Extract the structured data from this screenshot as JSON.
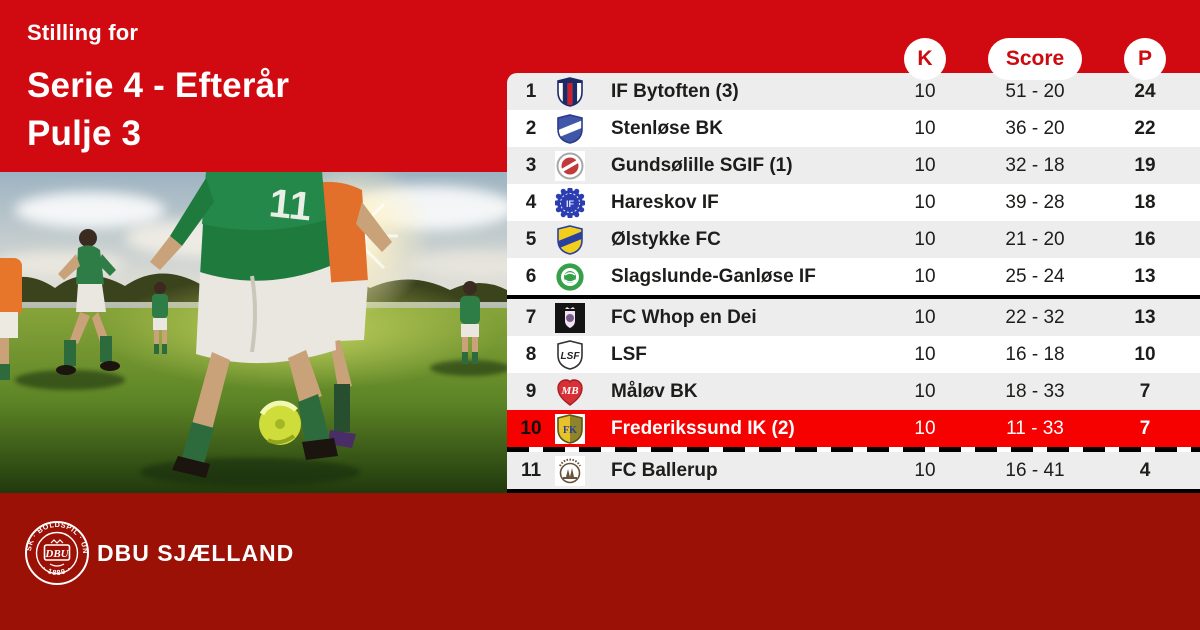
{
  "header": {
    "subtitle": "Stilling for",
    "title_line1": "Serie 4 - Efterår",
    "title_line2": "Pulje 3"
  },
  "table": {
    "columns": {
      "k": "K",
      "score": "Score",
      "p": "P"
    },
    "rows": [
      {
        "pos": "1",
        "team": "IF Bytoften (3)",
        "k": "10",
        "score": "51 - 20",
        "p": "24",
        "highlight": false,
        "logo": {
          "kind": "striped-shield",
          "border": "#1d2a66",
          "chief": "#1d2a66",
          "stripes": [
            "#ffffff",
            "#1d2a66",
            "#c8202e",
            "#1d2a66",
            "#ffffff"
          ]
        }
      },
      {
        "pos": "2",
        "team": "Stenløse BK",
        "k": "10",
        "score": "36 - 20",
        "p": "22",
        "highlight": false,
        "logo": {
          "kind": "banded-shield",
          "bg": "#4056a8",
          "band": "#ffffff",
          "border": "#2a3a86"
        }
      },
      {
        "pos": "3",
        "team": "Gundsølille SGIF (1)",
        "k": "10",
        "score": "32 - 18",
        "p": "19",
        "highlight": false,
        "logo": {
          "kind": "round-badge",
          "bg": "#ffffff",
          "ring": "#a8a8a8",
          "inner": "#c23b3b",
          "accent": "#ffffff"
        }
      },
      {
        "pos": "4",
        "team": "Hareskov IF",
        "k": "10",
        "score": "39 - 28",
        "p": "18",
        "highlight": false,
        "logo": {
          "kind": "scallop",
          "bg": "#2b3db0",
          "text": "IF",
          "textColor": "#e6ebff"
        }
      },
      {
        "pos": "5",
        "team": "Ølstykke FC",
        "k": "10",
        "score": "21 - 20",
        "p": "16",
        "highlight": false,
        "logo": {
          "kind": "banded-shield",
          "bg": "#f2cf1d",
          "band": "#2b3f9e",
          "border": "#2b3f9e"
        }
      },
      {
        "pos": "6",
        "team": "Slagslunde-Ganløse IF",
        "k": "10",
        "score": "25 - 24",
        "p": "13",
        "highlight": false,
        "logo": {
          "kind": "ring-ball",
          "ring": "#37a04b",
          "bg": "#ffffff",
          "ball": "#37a04b"
        }
      },
      {
        "pos": "7",
        "team": "FC Whop en Dei",
        "k": "10",
        "score": "22 - 32",
        "p": "13",
        "highlight": false,
        "logo": {
          "kind": "dark-crest",
          "bg": "#141414",
          "crest": "#efe6f2",
          "accent": "#7c5a8c"
        }
      },
      {
        "pos": "8",
        "team": "LSF",
        "k": "10",
        "score": "16 - 18",
        "p": "10",
        "highlight": false,
        "logo": {
          "kind": "outline-shield",
          "bg": "#ffffff",
          "border": "#333333",
          "text": "LSF",
          "textColor": "#222222"
        }
      },
      {
        "pos": "9",
        "team": "Måløv BK",
        "k": "10",
        "score": "18 - 33",
        "p": "7",
        "highlight": false,
        "logo": {
          "kind": "heart",
          "bg": "#d93036",
          "border": "#a31f24",
          "text": "MB",
          "textColor": "#ffffff"
        }
      },
      {
        "pos": "10",
        "team": "Frederikssund IK (2)",
        "k": "10",
        "score": "11 - 33",
        "p": "7",
        "highlight": true,
        "logo": {
          "kind": "split-shield",
          "bg": "#ffffff",
          "left": "#e8c22a",
          "right": "#8f842a",
          "border": "#5a5418",
          "text": "FK",
          "textColor": "#2b3f8e"
        }
      },
      {
        "pos": "11",
        "team": "FC Ballerup",
        "k": "10",
        "score": "16 - 41",
        "p": "4",
        "highlight": false,
        "logo": {
          "kind": "round-emblem",
          "bg": "#ffffff",
          "emblem": "#6a523a"
        }
      }
    ],
    "dividers": {
      "solid_after_row": 6,
      "dashed_after_row": 10
    }
  },
  "footer": {
    "brand": "DBU SJÆLLAND",
    "seal_center": "DBU",
    "seal_ring_text": "DANSK · BOLDSPIL · UNION",
    "seal_year": "· 1889 ·"
  },
  "colors": {
    "brand_red": "#d00a10",
    "footer_red": "#9c1106",
    "highlight_red": "#f60000",
    "row_alt": "#ededed",
    "text": "#1d1d1b",
    "pill_text": "#cc0a10"
  }
}
